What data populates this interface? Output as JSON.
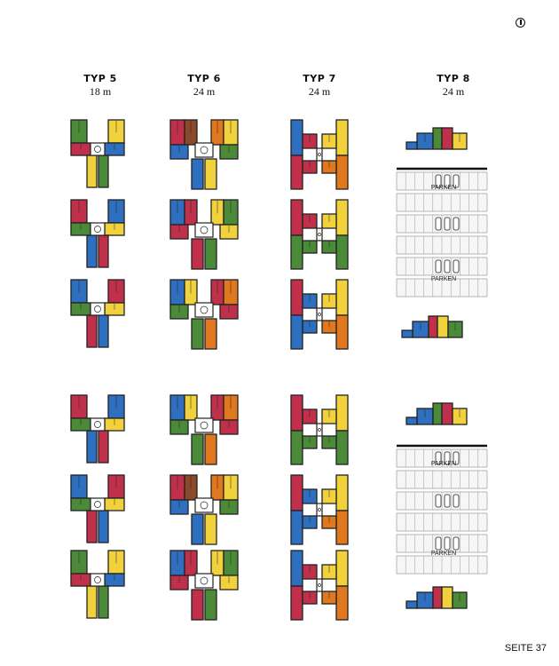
{
  "headers": [
    {
      "type": "TYP 5",
      "depth": "18 m"
    },
    {
      "type": "TYP 6",
      "depth": "24 m"
    },
    {
      "type": "TYP 7",
      "depth": "24 m"
    },
    {
      "type": "TYP 8",
      "depth": "24 m"
    }
  ],
  "parking_label": "PARKEN",
  "page_number": "SEITE 37",
  "logo_icon": "circle-logo-icon",
  "colors": {
    "green": "#4a8a38",
    "yellow": "#f2d23c",
    "blue": "#2f6fbf",
    "red": "#c0304a",
    "orange": "#e07820",
    "brown": "#8a4a2a",
    "outline": "#222222"
  }
}
